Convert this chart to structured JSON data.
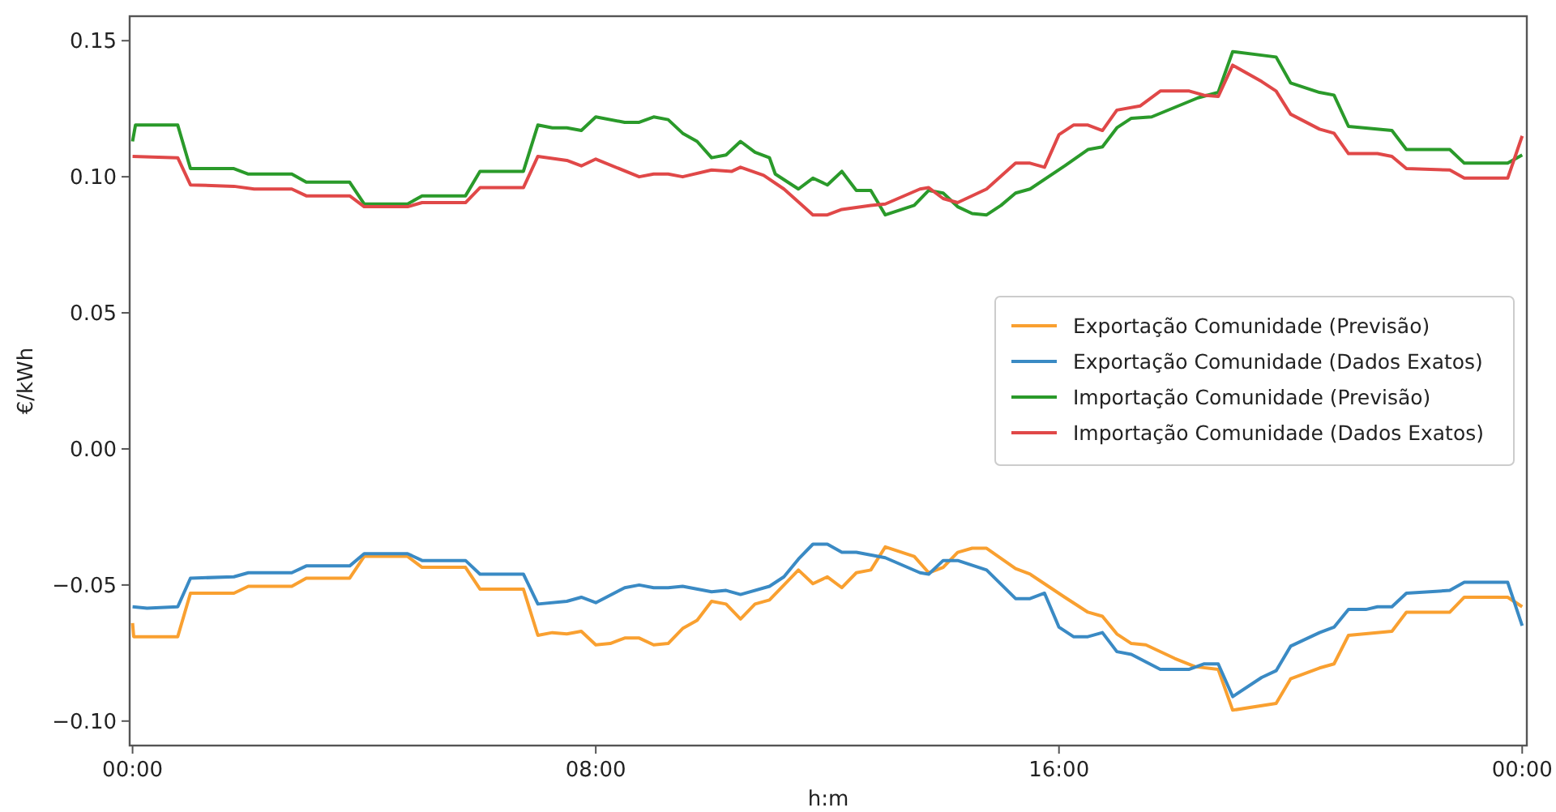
{
  "chart_data": {
    "type": "line",
    "xlabel": "h:m",
    "ylabel": "€/kWh",
    "xlim": [
      -0.05,
      24.08
    ],
    "ylim": [
      -0.109,
      0.159
    ],
    "xticks": [
      {
        "value": 0,
        "label": "00:00"
      },
      {
        "value": 8,
        "label": "08:00"
      },
      {
        "value": 16,
        "label": "16:00"
      },
      {
        "value": 24,
        "label": "00:00"
      }
    ],
    "yticks": [
      {
        "value": -0.1,
        "label": "−0.10"
      },
      {
        "value": -0.05,
        "label": "−0.05"
      },
      {
        "value": 0,
        "label": "0.00"
      },
      {
        "value": 0.05,
        "label": "0.05"
      },
      {
        "value": 0.1,
        "label": "0.10"
      },
      {
        "value": 0.15,
        "label": "0.15"
      }
    ],
    "grid": false,
    "legend": "right",
    "marker": "none",
    "line_style": "solid",
    "series": [
      {
        "name": "Exportação Comunidade (Previsão)",
        "color": "#f9a030",
        "x": [
          0,
          0.02,
          0.78,
          1,
          1.75,
          2,
          2.75,
          3,
          3.75,
          4,
          4.75,
          5,
          5.75,
          6,
          6.75,
          7,
          7.25,
          7.5,
          7.75,
          8,
          8.25,
          8.5,
          8.75,
          9,
          9.25,
          9.5,
          9.75,
          10,
          10.25,
          10.5,
          10.75,
          11,
          11.25,
          11.5,
          11.75,
          12,
          12.25,
          12.5,
          12.75,
          13,
          13.5,
          13.75,
          14,
          14.25,
          14.5,
          14.75,
          15.25,
          15.5,
          16.1,
          16.5,
          16.75,
          17,
          17.25,
          17.5,
          18,
          18.35,
          18.75,
          19,
          19.75,
          20,
          20.5,
          20.75,
          21,
          21.75,
          22,
          22.75,
          23,
          23.75,
          24
        ],
        "values": [
          -0.064,
          -0.069,
          -0.069,
          -0.053,
          -0.053,
          -0.0505,
          -0.0505,
          -0.0475,
          -0.0475,
          -0.0395,
          -0.0395,
          -0.0435,
          -0.0435,
          -0.0515,
          -0.0515,
          -0.0685,
          -0.0675,
          -0.068,
          -0.067,
          -0.072,
          -0.0715,
          -0.0695,
          -0.0695,
          -0.072,
          -0.0715,
          -0.066,
          -0.063,
          -0.056,
          -0.057,
          -0.0625,
          -0.057,
          -0.0555,
          -0.05,
          -0.0445,
          -0.0495,
          -0.047,
          -0.051,
          -0.0455,
          -0.0445,
          -0.036,
          -0.0395,
          -0.0455,
          -0.0435,
          -0.038,
          -0.0365,
          -0.0365,
          -0.044,
          -0.046,
          -0.0545,
          -0.06,
          -0.0615,
          -0.068,
          -0.0715,
          -0.072,
          -0.077,
          -0.08,
          -0.081,
          -0.096,
          -0.0935,
          -0.0845,
          -0.0805,
          -0.079,
          -0.0685,
          -0.067,
          -0.06,
          -0.06,
          -0.0545,
          -0.0545,
          -0.058
        ]
      },
      {
        "name": "Exportação Comunidade (Dados Exatos)",
        "color": "#3a8ac4",
        "x": [
          0,
          0.25,
          0.78,
          1,
          1.75,
          2,
          2.75,
          3,
          3.75,
          4,
          4.75,
          5,
          5.75,
          6,
          6.75,
          7,
          7.5,
          7.75,
          8,
          8.5,
          8.75,
          9,
          9.25,
          9.5,
          10,
          10.25,
          10.5,
          11,
          11.25,
          11.5,
          11.75,
          12,
          12.25,
          12.5,
          13,
          13.6,
          13.75,
          14,
          14.25,
          14.75,
          15.25,
          15.5,
          15.75,
          16,
          16.25,
          16.5,
          16.75,
          17,
          17.25,
          17.75,
          18.25,
          18.5,
          18.75,
          19,
          19.5,
          19.75,
          20,
          20.5,
          20.75,
          21,
          21.3,
          21.5,
          21.75,
          22,
          22.75,
          23,
          23.75,
          24
        ],
        "values": [
          -0.058,
          -0.0585,
          -0.058,
          -0.0475,
          -0.047,
          -0.0455,
          -0.0455,
          -0.043,
          -0.043,
          -0.0385,
          -0.0385,
          -0.041,
          -0.041,
          -0.046,
          -0.046,
          -0.057,
          -0.056,
          -0.0545,
          -0.0565,
          -0.051,
          -0.05,
          -0.051,
          -0.051,
          -0.0505,
          -0.0525,
          -0.052,
          -0.0535,
          -0.0505,
          -0.047,
          -0.0405,
          -0.035,
          -0.035,
          -0.038,
          -0.038,
          -0.04,
          -0.0455,
          -0.046,
          -0.041,
          -0.041,
          -0.0445,
          -0.055,
          -0.055,
          -0.053,
          -0.0655,
          -0.069,
          -0.069,
          -0.0675,
          -0.0745,
          -0.0755,
          -0.081,
          -0.081,
          -0.079,
          -0.079,
          -0.091,
          -0.084,
          -0.0815,
          -0.0725,
          -0.0675,
          -0.0655,
          -0.059,
          -0.059,
          -0.058,
          -0.058,
          -0.053,
          -0.052,
          -0.049,
          -0.049,
          -0.065
        ]
      },
      {
        "name": "Importação Comunidade (Previsão)",
        "color": "#2a9a2a",
        "x": [
          0,
          0.05,
          0.78,
          1,
          1.75,
          2,
          2.75,
          3,
          3.75,
          4,
          4.75,
          5,
          5.75,
          6,
          6.75,
          7,
          7.25,
          7.5,
          7.75,
          8,
          8.5,
          8.75,
          9,
          9.25,
          9.5,
          9.75,
          10,
          10.25,
          10.5,
          10.75,
          11,
          11.1,
          11.5,
          11.75,
          12,
          12.25,
          12.5,
          12.75,
          13,
          13.5,
          13.75,
          14,
          14.25,
          14.5,
          14.75,
          15,
          15.25,
          15.5,
          16.1,
          16.5,
          16.75,
          17,
          17.25,
          17.6,
          18,
          18.4,
          18.75,
          19,
          19.75,
          20,
          20.5,
          20.75,
          21,
          21.75,
          22,
          22.75,
          23,
          23.75,
          24
        ],
        "values": [
          0.113,
          0.119,
          0.119,
          0.103,
          0.103,
          0.101,
          0.101,
          0.098,
          0.098,
          0.09,
          0.09,
          0.093,
          0.093,
          0.102,
          0.102,
          0.119,
          0.118,
          0.118,
          0.117,
          0.122,
          0.12,
          0.12,
          0.122,
          0.121,
          0.116,
          0.113,
          0.107,
          0.108,
          0.113,
          0.109,
          0.107,
          0.101,
          0.0955,
          0.0995,
          0.097,
          0.102,
          0.095,
          0.095,
          0.086,
          0.0895,
          0.095,
          0.094,
          0.089,
          0.0865,
          0.086,
          0.0895,
          0.094,
          0.0955,
          0.104,
          0.11,
          0.111,
          0.118,
          0.1215,
          0.122,
          0.1255,
          0.129,
          0.131,
          0.146,
          0.144,
          0.1345,
          0.131,
          0.13,
          0.1185,
          0.117,
          0.11,
          0.11,
          0.105,
          0.105,
          0.108
        ]
      },
      {
        "name": "Importação Comunidade (Dados Exatos)",
        "color": "#e04848",
        "x": [
          0,
          0.78,
          1,
          1.75,
          2.1,
          2.75,
          3,
          3.75,
          4,
          4.75,
          5,
          5.75,
          6,
          6.75,
          7,
          7.5,
          7.75,
          8,
          8.75,
          9,
          9.25,
          9.5,
          10,
          10.35,
          10.5,
          10.9,
          11.25,
          11.75,
          12,
          12.25,
          12.75,
          13,
          13.6,
          13.75,
          14,
          14.25,
          14.75,
          15.25,
          15.5,
          15.75,
          16,
          16.25,
          16.5,
          16.75,
          17,
          17.4,
          17.75,
          18.25,
          18.5,
          18.75,
          19,
          19.5,
          19.75,
          20,
          20.5,
          20.75,
          21,
          21.5,
          21.75,
          22,
          22.75,
          23,
          23.75,
          24
        ],
        "values": [
          0.1075,
          0.107,
          0.097,
          0.0965,
          0.0955,
          0.0955,
          0.093,
          0.093,
          0.089,
          0.089,
          0.0905,
          0.0905,
          0.096,
          0.096,
          0.1075,
          0.106,
          0.104,
          0.1065,
          0.1,
          0.101,
          0.101,
          0.1,
          0.1025,
          0.102,
          0.1035,
          0.1005,
          0.0955,
          0.086,
          0.086,
          0.088,
          0.0895,
          0.09,
          0.0955,
          0.096,
          0.092,
          0.0905,
          0.0955,
          0.105,
          0.105,
          0.1035,
          0.1155,
          0.119,
          0.119,
          0.117,
          0.1245,
          0.126,
          0.1315,
          0.1315,
          0.13,
          0.1295,
          0.141,
          0.135,
          0.1315,
          0.123,
          0.1175,
          0.116,
          0.1085,
          0.1085,
          0.1075,
          0.103,
          0.1025,
          0.0995,
          0.0995,
          0.115
        ]
      }
    ]
  }
}
